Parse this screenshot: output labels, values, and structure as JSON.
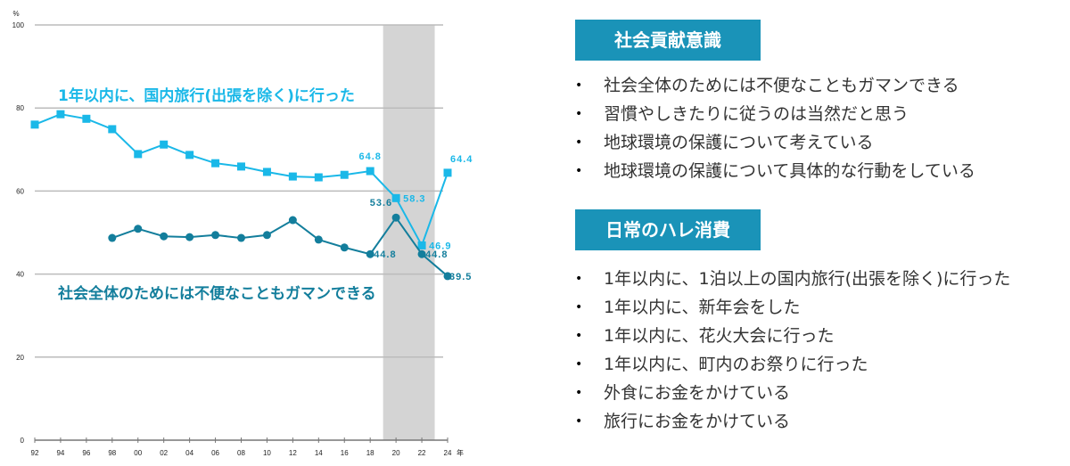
{
  "chart_data": {
    "type": "line",
    "ylabel": "%",
    "xlabel": "年",
    "ylim": [
      0,
      100
    ],
    "yticks": [
      "0",
      "20",
      "40",
      "60",
      "80",
      "100"
    ],
    "grid": true,
    "x": [
      "92",
      "94",
      "96",
      "98",
      "00",
      "02",
      "04",
      "06",
      "08",
      "10",
      "12",
      "14",
      "16",
      "18",
      "20",
      "22",
      "24"
    ],
    "shaded_range": [
      "19",
      "23"
    ],
    "series": [
      {
        "name": "1年以内に、国内旅行(出張を除く)に行った",
        "color": "#1ab8e8",
        "marker": "square",
        "values": [
          76.0,
          78.5,
          77.4,
          74.9,
          68.9,
          71.2,
          68.7,
          66.7,
          65.9,
          64.6,
          63.5,
          63.3,
          63.9,
          64.8,
          58.3,
          46.9,
          64.4
        ],
        "data_labels": {
          "18": "64.8",
          "20": "58.3",
          "22": "46.9",
          "24": "64.4"
        }
      },
      {
        "name": "社会全体のためには不便なこともガマンできる",
        "color": "#137e9c",
        "marker": "circle",
        "values": [
          null,
          null,
          null,
          48.7,
          50.9,
          49.1,
          48.9,
          49.4,
          48.7,
          49.4,
          53.0,
          48.3,
          46.4,
          44.8,
          53.6,
          44.8,
          39.5
        ],
        "data_labels": {
          "18": "44.8",
          "20": "53.6",
          "22": "44.8",
          "24": "39.5"
        }
      }
    ]
  },
  "panel": {
    "section1": {
      "title": "社会貢献意識",
      "items": [
        "社会全体のためには不便なこともガマンできる",
        "習慣やしきたりに従うのは当然だと思う",
        "地球環境の保護について考えている",
        "地球環境の保護について具体的な行動をしている"
      ]
    },
    "section2": {
      "title": "日常のハレ消費",
      "items": [
        "1年以内に、1泊以上の国内旅行(出張を除く)に行った",
        "1年以内に、新年会をした",
        "1年以内に、花火大会に行った",
        "1年以内に、町内のお祭りに行った",
        "外食にお金をかけている",
        "旅行にお金をかけている"
      ]
    },
    "bullet": "•"
  }
}
